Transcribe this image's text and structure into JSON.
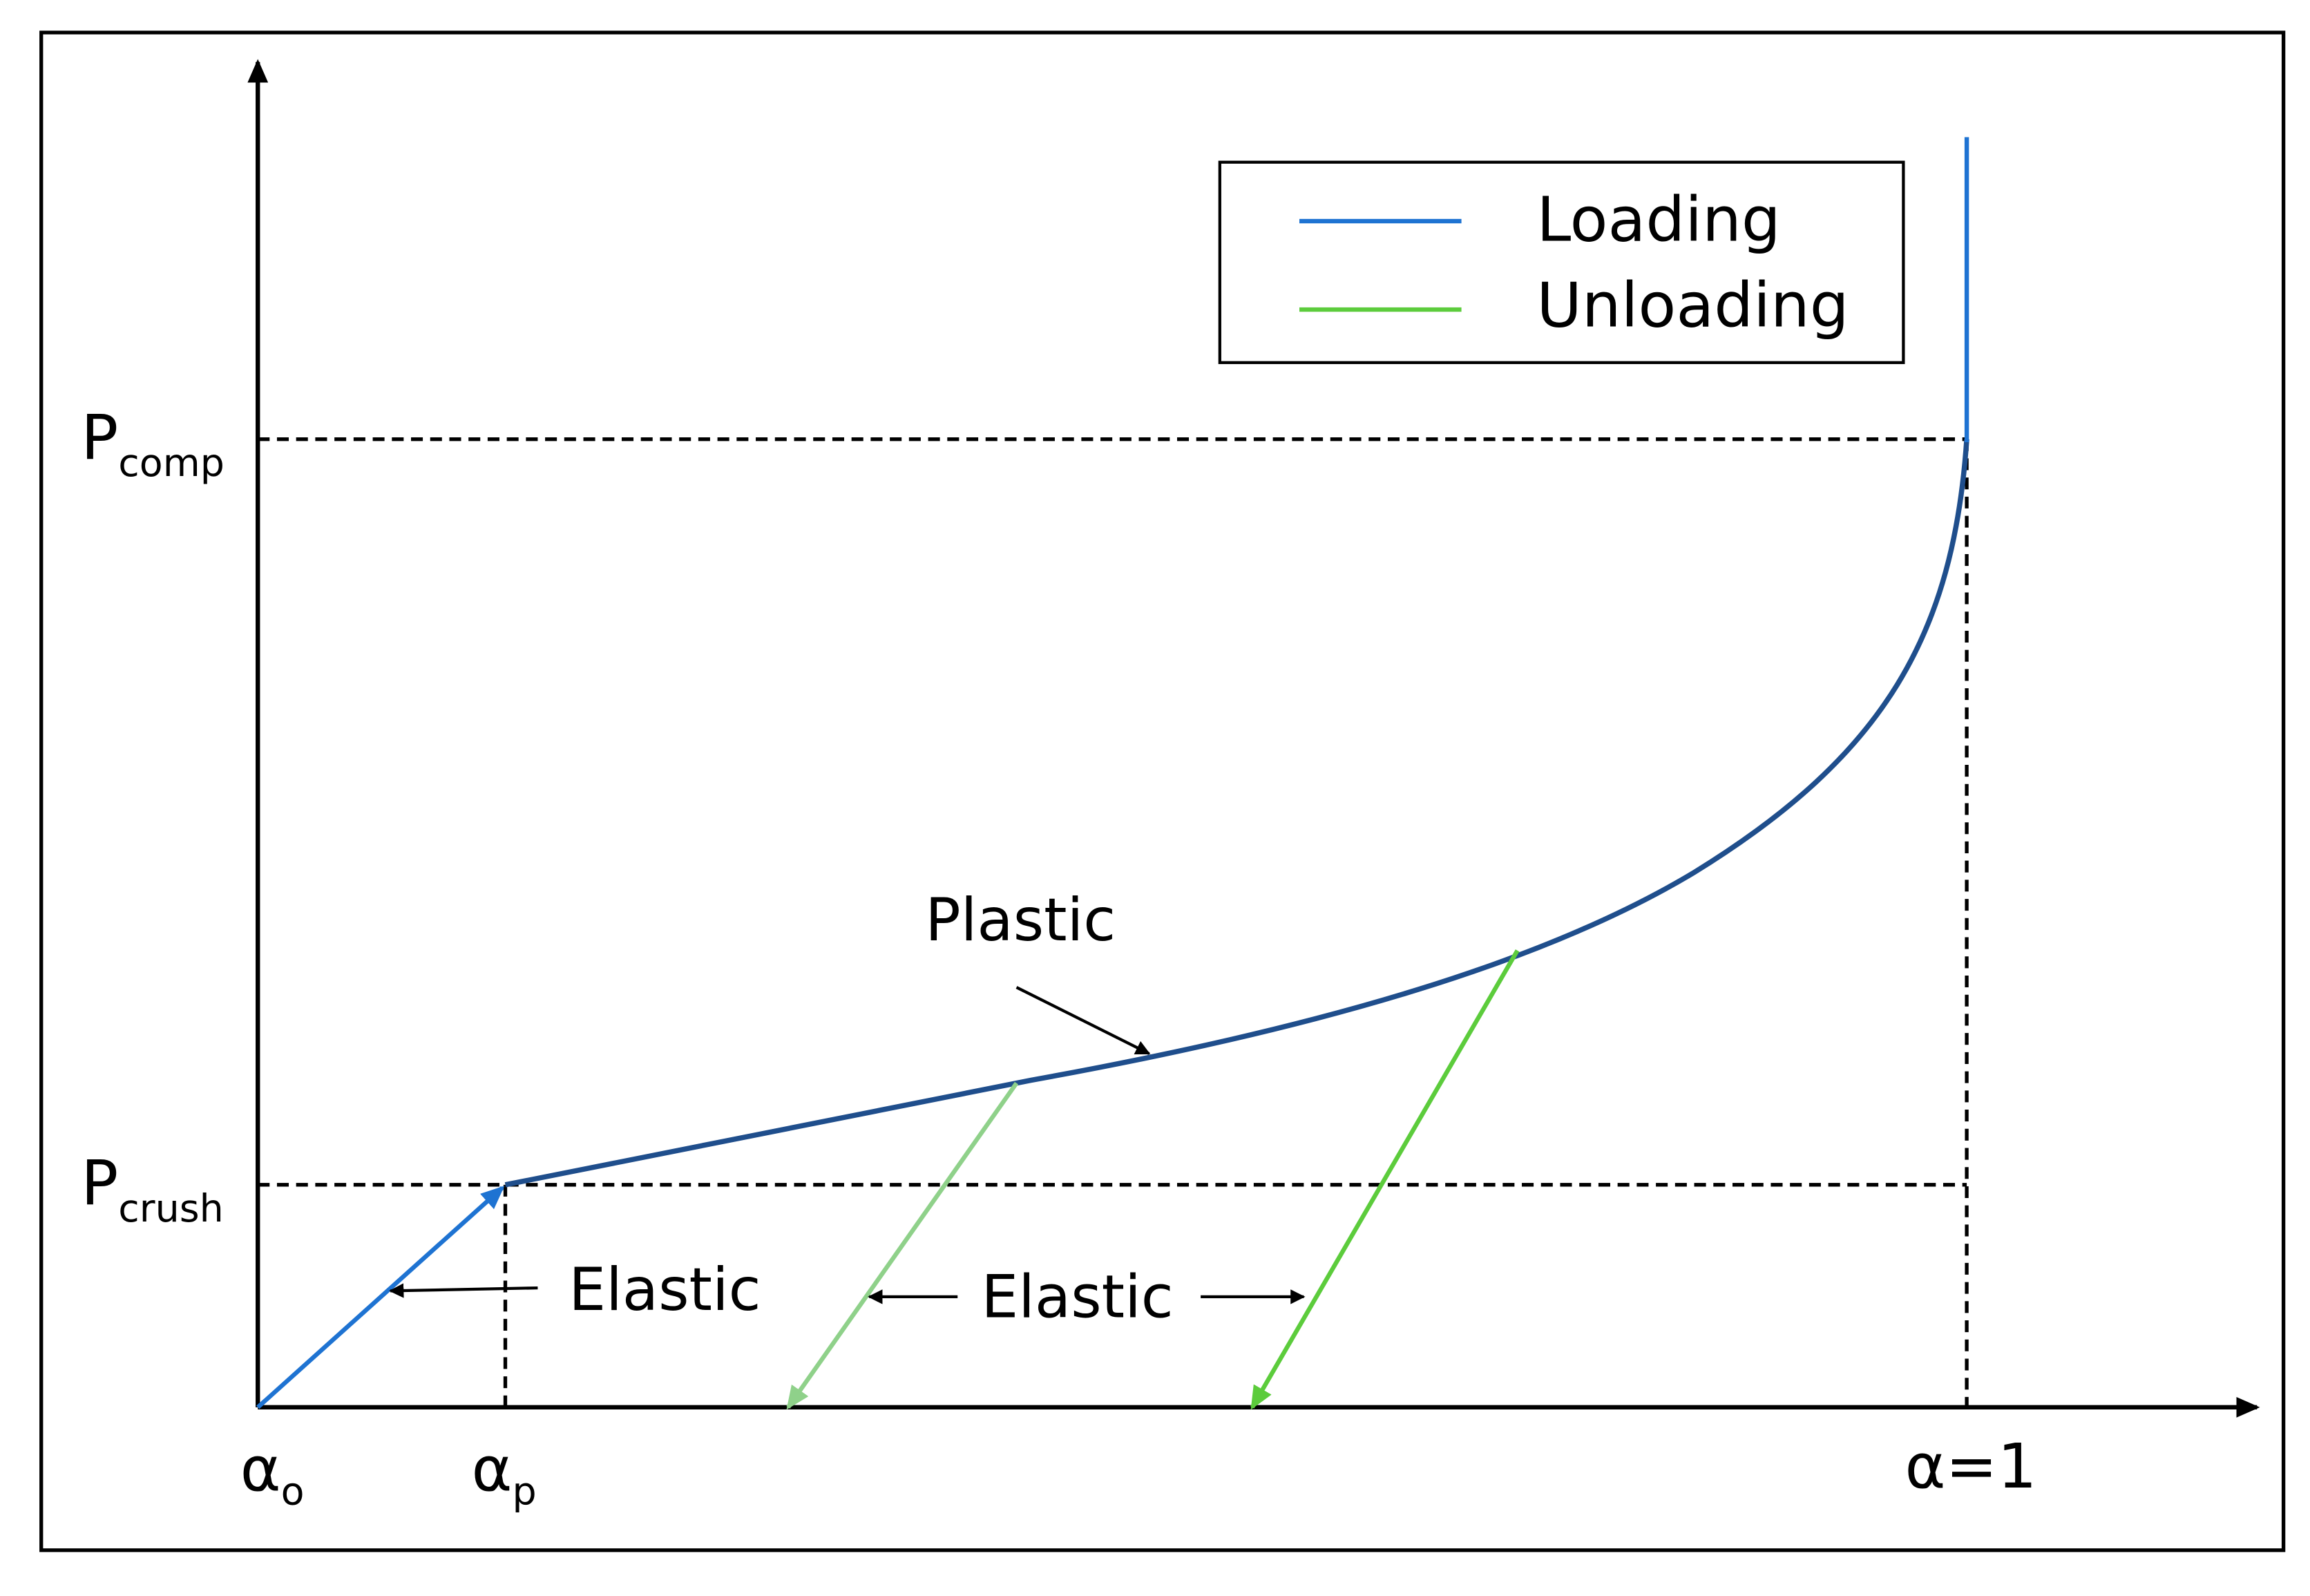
{
  "y_labels": [
    {
      "main": "P",
      "sub": "comp"
    },
    {
      "main": "P",
      "sub": "crush"
    }
  ],
  "x_labels": [
    {
      "main": "α",
      "sub": "o"
    },
    {
      "main": "α",
      "sub": "p"
    },
    {
      "main": "α=1"
    }
  ],
  "legend": [
    "Loading",
    "Unloading"
  ],
  "annotations": {
    "plastic": "Plastic",
    "elastic_left": "Elastic",
    "elastic_middle": "Elastic"
  }
}
